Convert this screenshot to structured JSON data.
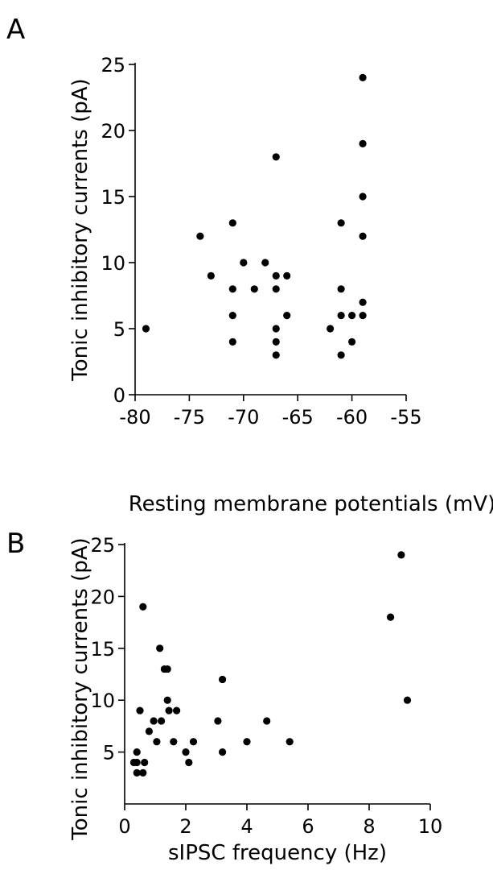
{
  "chart_data": [
    {
      "panel": "A",
      "type": "scatter",
      "xlabel": "Resting membrane potentials (mV)",
      "ylabel": "Tonic inhibitory  currents (pA)",
      "xlim": [
        -80,
        -55
      ],
      "ylim": [
        0,
        25
      ],
      "xticks": [
        -80,
        -75,
        -70,
        -65,
        -60,
        -55
      ],
      "yticks": [
        0,
        5,
        10,
        15,
        20,
        25
      ],
      "grid": false,
      "points": [
        [
          -79,
          5
        ],
        [
          -74,
          12
        ],
        [
          -73,
          9
        ],
        [
          -71,
          13
        ],
        [
          -71,
          8
        ],
        [
          -71,
          6
        ],
        [
          -71,
          4
        ],
        [
          -70,
          10
        ],
        [
          -69,
          8
        ],
        [
          -68,
          10
        ],
        [
          -67,
          18
        ],
        [
          -67,
          9
        ],
        [
          -67,
          8
        ],
        [
          -67,
          5
        ],
        [
          -67,
          4
        ],
        [
          -67,
          3
        ],
        [
          -66,
          9
        ],
        [
          -66,
          6
        ],
        [
          -62,
          5
        ],
        [
          -61,
          13
        ],
        [
          -61,
          8
        ],
        [
          -61,
          6
        ],
        [
          -61,
          3
        ],
        [
          -60,
          4
        ],
        [
          -60,
          6
        ],
        [
          -59,
          24
        ],
        [
          -59,
          19
        ],
        [
          -59,
          15
        ],
        [
          -59,
          12
        ],
        [
          -59,
          7
        ],
        [
          -59,
          6
        ]
      ]
    },
    {
      "panel": "B",
      "type": "scatter",
      "xlabel": "sIPSC frequency (Hz)",
      "ylabel": "Tonic inhibitory  currents (pA)",
      "xlim": [
        0,
        10
      ],
      "ylim": [
        0,
        25
      ],
      "xticks": [
        0,
        2,
        4,
        6,
        8,
        10
      ],
      "yticks": [
        5,
        10,
        15,
        20,
        25
      ],
      "grid": false,
      "points": [
        [
          0.3,
          4
        ],
        [
          0.4,
          4
        ],
        [
          0.4,
          5
        ],
        [
          0.4,
          3
        ],
        [
          0.5,
          9
        ],
        [
          0.6,
          19
        ],
        [
          0.6,
          3
        ],
        [
          0.65,
          4
        ],
        [
          0.8,
          7
        ],
        [
          0.95,
          8
        ],
        [
          1.05,
          6
        ],
        [
          1.15,
          15
        ],
        [
          1.2,
          8
        ],
        [
          1.3,
          13
        ],
        [
          1.4,
          13
        ],
        [
          1.4,
          10
        ],
        [
          1.45,
          9
        ],
        [
          1.6,
          6
        ],
        [
          1.7,
          9
        ],
        [
          2.0,
          5
        ],
        [
          2.1,
          4
        ],
        [
          2.25,
          6
        ],
        [
          3.05,
          8
        ],
        [
          3.2,
          12
        ],
        [
          3.2,
          5
        ],
        [
          4.0,
          6
        ],
        [
          4.65,
          8
        ],
        [
          5.4,
          6
        ],
        [
          8.7,
          18
        ],
        [
          9.05,
          24
        ],
        [
          9.25,
          10
        ]
      ]
    }
  ]
}
